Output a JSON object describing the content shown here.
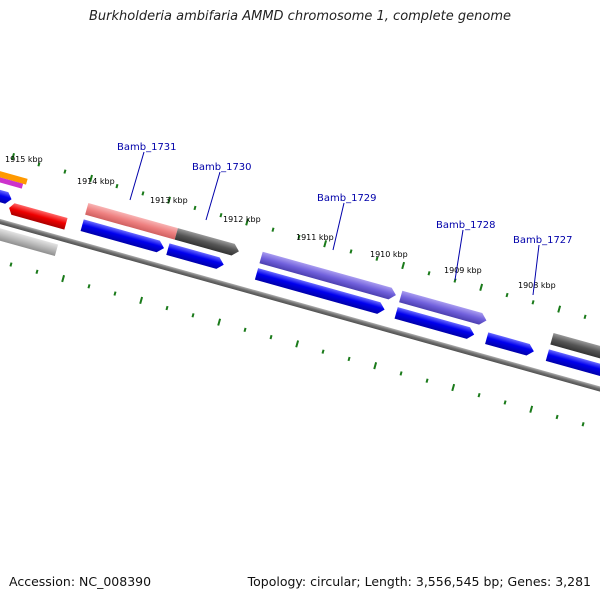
{
  "title": "Burkholderia ambifaria AMMD chromosome 1, complete genome",
  "footer": {
    "accession": "Accession: NC_008390",
    "summary": "Topology: circular; Length: 3,556,545 bp; Genes: 3,281"
  },
  "colors": {
    "backbone": "#777777",
    "tick": "#1a7a1a",
    "label": "#0000aa",
    "cds": "#0000ee",
    "pink": "#ee8888",
    "gray": "#555555",
    "purple": "#7a6adf",
    "red": "#ee0000",
    "lightgray": "#bbbbbb",
    "orange": "#ff9900",
    "magenta": "#cc33cc"
  },
  "gene_labels": [
    "Bamb_1731",
    "Bamb_1730",
    "Bamb_1729",
    "Bamb_1728",
    "Bamb_1727"
  ],
  "scale_labels": [
    "1915 kbp",
    "1914 kbp",
    "1913 kbp",
    "1912 kbp",
    "1911 kbp",
    "1910 kbp",
    "1909 kbp",
    "1908 kbp"
  ]
}
